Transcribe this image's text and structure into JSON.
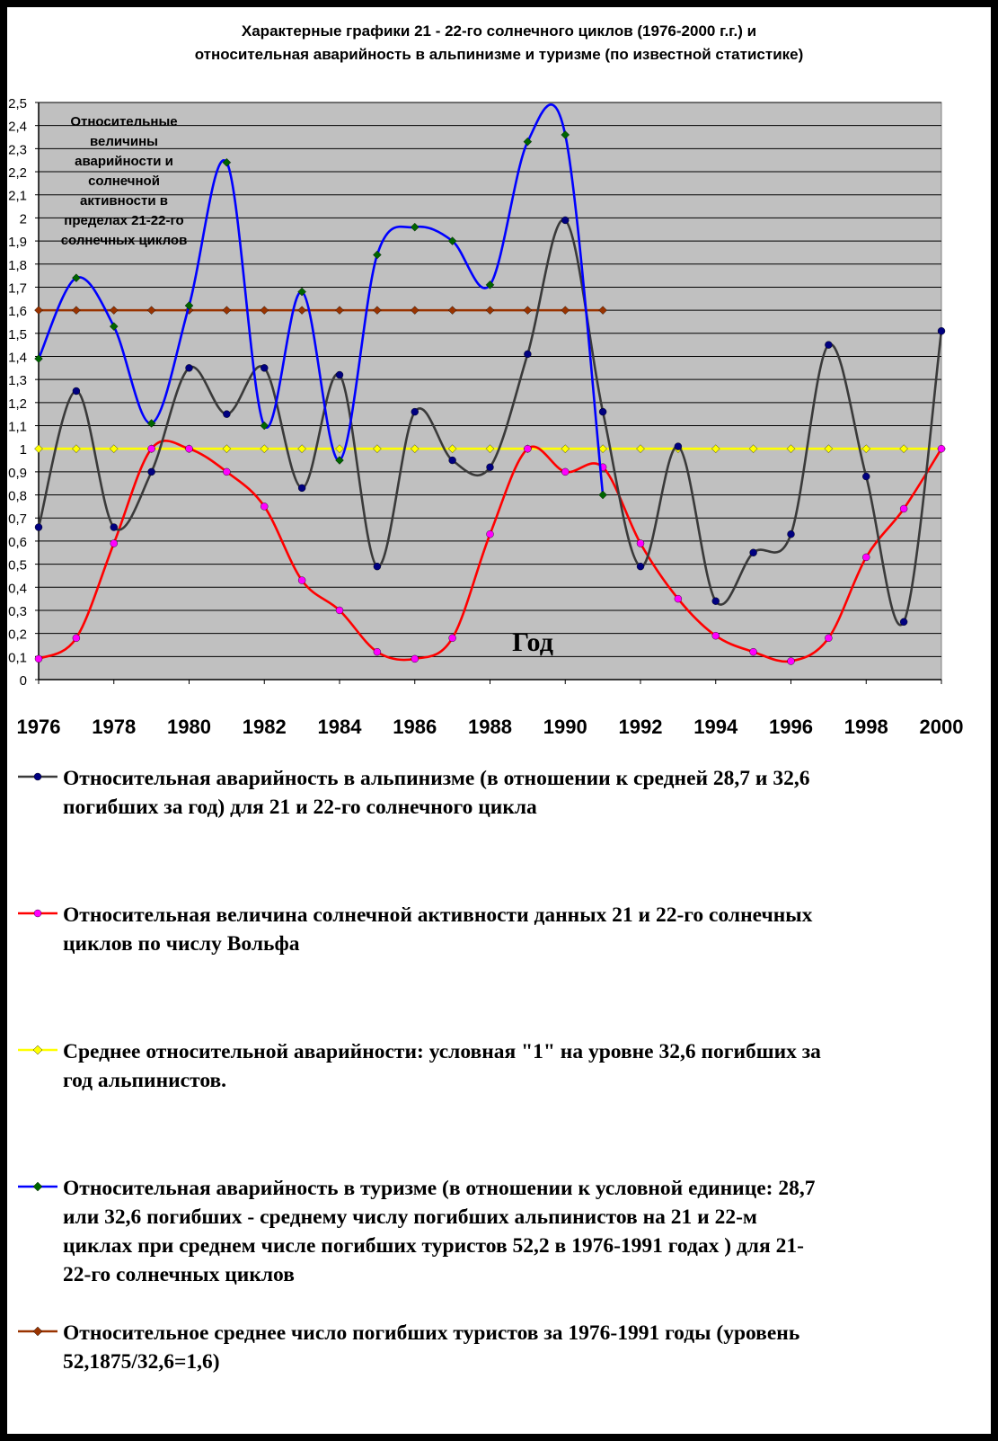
{
  "title_lines": [
    "Характерные графики  21 - 22-го солнечного циклов (1976-2000 г.г.) и",
    "относительная аварийность в  альпинизме и туризме (по известной статистике)"
  ],
  "chart_data": {
    "type": "line",
    "title": "Характерные графики  21 - 22-го солнечного циклов (1976-2000 г.г.) и относительная аварийность в  альпинизме и туризме (по известной статистике)",
    "xlabel": "Год",
    "ylabel": "",
    "xlim": [
      1976,
      2000
    ],
    "ylim": [
      0,
      2.5
    ],
    "x_ticks": [
      "1976",
      "1978",
      "1980",
      "1982",
      "1984",
      "1986",
      "1988",
      "1990",
      "1992",
      "1994",
      "1996",
      "1998",
      "2000"
    ],
    "y_ticks": [
      "0",
      "0,1",
      "0,2",
      "0,3",
      "0,4",
      "0,5",
      "0,6",
      "0,7",
      "0,8",
      "0,9",
      "1",
      "1,1",
      "1,2",
      "1,3",
      "1,4",
      "1,5",
      "1,6",
      "1,7",
      "1,8",
      "1,9",
      "2",
      "2,1",
      "2,2",
      "2,3",
      "2,4",
      "2,5"
    ],
    "grid": true,
    "plot_background": "#c0c0c0",
    "annotation": "Относительные величины аварийности и солнечной активности в пределах 21-22-го солнечных циклов",
    "legend_position": "bottom",
    "series": [
      {
        "name": "Относительная аварийность в альпинизме (в отношении к средней 28,7 и 32,6 погибших за год) для 21 и  22-го солнечного цикла",
        "line_color": "#3a3a3a",
        "marker_color": "#000080",
        "marker": "circle",
        "x": [
          1976,
          1977,
          1978,
          1979,
          1980,
          1981,
          1982,
          1983,
          1984,
          1985,
          1986,
          1987,
          1988,
          1989,
          1990,
          1991,
          1992,
          1993,
          1994,
          1995,
          1996,
          1997,
          1998,
          1999,
          2000
        ],
        "values": [
          0.66,
          1.25,
          0.66,
          0.9,
          1.35,
          1.15,
          1.35,
          0.83,
          1.32,
          0.49,
          1.16,
          0.95,
          0.92,
          1.41,
          1.99,
          1.16,
          0.49,
          1.01,
          0.34,
          0.55,
          0.63,
          1.45,
          0.88,
          0.25,
          1.51
        ]
      },
      {
        "name": "Относительная величина солнечной активности данных 21 и 22-го солнечных циклов по числу Вольфа",
        "line_color": "#ff0000",
        "marker_color": "#ff00ff",
        "marker": "circle",
        "x": [
          1976,
          1977,
          1978,
          1979,
          1980,
          1981,
          1982,
          1983,
          1984,
          1985,
          1986,
          1987,
          1988,
          1989,
          1990,
          1991,
          1992,
          1993,
          1994,
          1995,
          1996,
          1997,
          1998,
          1999,
          2000
        ],
        "values": [
          0.09,
          0.18,
          0.59,
          1.0,
          1.0,
          0.9,
          0.75,
          0.43,
          0.3,
          0.12,
          0.09,
          0.18,
          0.63,
          1.0,
          0.9,
          0.92,
          0.59,
          0.35,
          0.19,
          0.12,
          0.08,
          0.18,
          0.53,
          0.74,
          1.0
        ]
      },
      {
        "name": "Среднее относительной аварийности: условная \"1\" на уровне 32,6 погибших за год альпинистов.",
        "line_color": "#ffff00",
        "marker_color": "#ffff00",
        "marker": "diamond",
        "x": [
          1976,
          1977,
          1978,
          1979,
          1980,
          1981,
          1982,
          1983,
          1984,
          1985,
          1986,
          1987,
          1988,
          1989,
          1990,
          1991,
          1992,
          1993,
          1994,
          1995,
          1996,
          1997,
          1998,
          1999,
          2000
        ],
        "values": [
          1,
          1,
          1,
          1,
          1,
          1,
          1,
          1,
          1,
          1,
          1,
          1,
          1,
          1,
          1,
          1,
          1,
          1,
          1,
          1,
          1,
          1,
          1,
          1,
          1
        ]
      },
      {
        "name": "Относительная аварийность в туризме (в отношении к условной единице: 28,7 или 32,6 погибших - среднему числу погибших альпинистов на 21 и 22-м циклах  при среднем числе погибших туристов 52,2 в 1976-1991 годах ) для 21-22-го солнечных циклов",
        "line_color": "#0000ff",
        "marker_color": "#006400",
        "marker": "diamond",
        "x": [
          1976,
          1977,
          1978,
          1979,
          1980,
          1981,
          1982,
          1983,
          1984,
          1985,
          1986,
          1987,
          1988,
          1989,
          1990,
          1991
        ],
        "values": [
          1.39,
          1.74,
          1.53,
          1.11,
          1.62,
          2.24,
          1.1,
          1.68,
          0.95,
          1.84,
          1.96,
          1.9,
          1.71,
          2.33,
          2.36,
          0.8
        ]
      },
      {
        "name": "Относительное среднее число  погибших туристов за 1976-1991 годы (уровень 52,1875/32,6=1,6)",
        "line_color": "#993300",
        "marker_color": "#993300",
        "marker": "diamond",
        "x": [
          1976,
          1977,
          1978,
          1979,
          1980,
          1981,
          1982,
          1983,
          1984,
          1985,
          1986,
          1987,
          1988,
          1989,
          1990,
          1991
        ],
        "values": [
          1.6,
          1.6,
          1.6,
          1.6,
          1.6,
          1.6,
          1.6,
          1.6,
          1.6,
          1.6,
          1.6,
          1.6,
          1.6,
          1.6,
          1.6,
          1.6
        ]
      }
    ]
  },
  "legend": [
    {
      "line_color": "#3a3a3a",
      "marker_color": "#000080",
      "marker": "circle",
      "lines": [
        "Относительная аварийность в альпинизме (в отношении к средней 28,7 и 32,6",
        "погибших за год) для 21 и  22-го солнечного цикла"
      ]
    },
    {
      "line_color": "#ff0000",
      "marker_color": "#ff00ff",
      "marker": "circle",
      "lines": [
        "Относительная величина солнечной активности данных 21 и 22-го солнечных",
        "циклов по числу Вольфа"
      ]
    },
    {
      "line_color": "#ffff00",
      "marker_color": "#ffff00",
      "marker": "diamond",
      "lines": [
        "Среднее относительной аварийности: условная \"1\" на уровне 32,6 погибших за",
        "год альпинистов."
      ]
    },
    {
      "line_color": "#0000ff",
      "marker_color": "#006400",
      "marker": "diamond",
      "lines": [
        "Относительная аварийность в туризме (в отношении к условной единице: 28,7",
        "или 32,6 погибших - среднему числу погибших альпинистов на 21 и 22-м",
        "циклах  при среднем числе погибших туристов 52,2 в 1976-1991 годах ) для 21-",
        "22-го солнечных циклов"
      ]
    },
    {
      "line_color": "#993300",
      "marker_color": "#993300",
      "marker": "diamond",
      "lines": [
        "Относительное среднее число  погибших туристов за 1976-1991 годы (уровень",
        "52,1875/32,6=1,6)"
      ]
    }
  ]
}
